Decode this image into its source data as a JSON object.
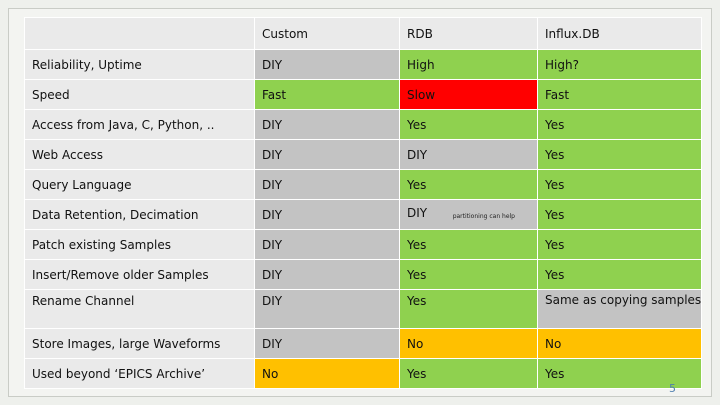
{
  "columns": [
    "",
    "Custom",
    "RDB",
    "Influx.DB"
  ],
  "rows": [
    {
      "feature": "Reliability, Uptime",
      "custom": "DIY",
      "rdb": "High",
      "influx": "High?"
    },
    {
      "feature": "Speed",
      "custom": "Fast",
      "rdb": "Slow",
      "influx": "Fast"
    },
    {
      "feature": "Access from Java, C, Python, ..",
      "custom": "DIY",
      "rdb": "Yes",
      "influx": "Yes"
    },
    {
      "feature": "Web Access",
      "custom": "DIY",
      "rdb": "DIY",
      "influx": "Yes"
    },
    {
      "feature": "Query Language",
      "custom": "DIY",
      "rdb": "Yes",
      "influx": "Yes"
    },
    {
      "feature": "Data Retention, Decimation",
      "custom": "DIY",
      "rdb": "DIY",
      "rdb_note": "partitioning can help",
      "influx": "Yes"
    },
    {
      "feature": "Patch existing Samples",
      "custom": "DIY",
      "rdb": "Yes",
      "influx": "Yes"
    },
    {
      "feature": "Insert/Remove older Samples",
      "custom": "DIY",
      "rdb": "Yes",
      "influx": "Yes"
    },
    {
      "feature": "Rename Channel",
      "custom": "DIY",
      "rdb": "Yes",
      "influx": "Same as copying samples"
    },
    {
      "feature": "Store Images, large Waveforms",
      "custom": "DIY",
      "rdb": "No",
      "influx": "No"
    },
    {
      "feature": "Used beyond ‘EPICS Archive’",
      "custom": "No",
      "rdb": "Yes",
      "influx": "Yes"
    }
  ],
  "colors": {
    "label_bg": "#eaeaea",
    "gray": "#c3c3c3",
    "green": "#8fd14f",
    "red": "#ff0000",
    "orange": "#ffc000"
  },
  "slide_number": "5"
}
